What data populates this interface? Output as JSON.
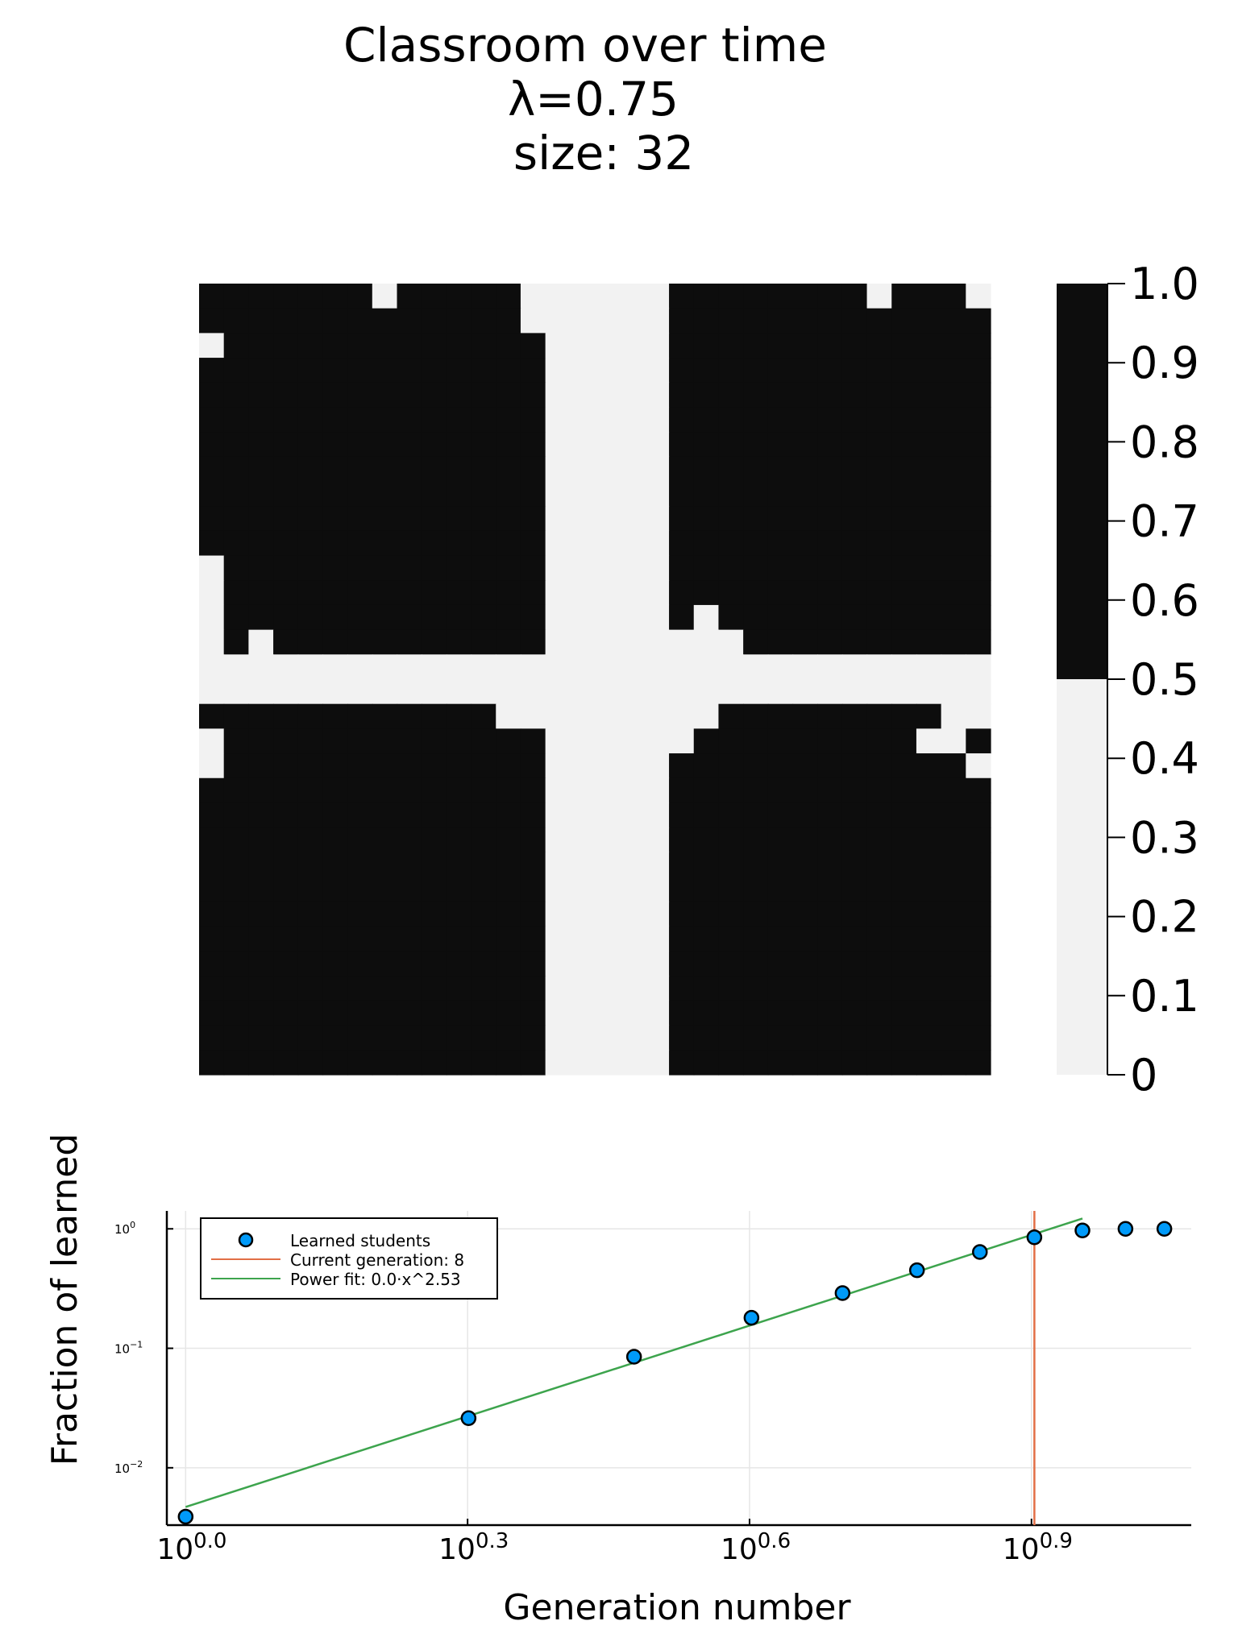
{
  "chart_data": [
    {
      "type": "heatmap",
      "title_lines": [
        "Classroom over time",
        "λ=0.75",
        "size: 32"
      ],
      "grid_size": 32,
      "colors": {
        "high": "#0d0d0d",
        "low": "#f2f2f2"
      },
      "colorbar": {
        "range": [
          0,
          1
        ],
        "ticks": [
          0,
          0.1,
          0.2,
          0.3,
          0.4,
          0.5,
          0.6,
          0.7,
          0.8,
          0.9,
          1.0
        ],
        "tick_labels": [
          "0",
          "0.1",
          "0.2",
          "0.3",
          "0.4",
          "0.5",
          "0.6",
          "0.7",
          "0.8",
          "0.9",
          "1.0"
        ],
        "threshold": 0.5
      },
      "grid_rows": [
        "11111110111110000001111111101110",
        "11111111111110000001111111111111",
        "01111111111111000001111111111111",
        "11111111111111000001111111111111",
        "11111111111111000001111111111111",
        "11111111111111000001111111111111",
        "11111111111111000001111111111111",
        "11111111111111000001111111111111",
        "11111111111111000001111111111111",
        "11111111111111000001111111111111",
        "11111111111111000001111111111111",
        "01111111111111000001111111111111",
        "01111111111111000001111111111111",
        "01111111111111000001011111111111",
        "01011111111111000000001111111111",
        "00000000000000000000000000000000",
        "00000000000000000000000000000000",
        "11111111111100000000011111111100",
        "01111111111111000000111111111001",
        "01111111111111000001111111111110",
        "11111111111111000001111111111111",
        "11111111111111000001111111111111",
        "11111111111111000001111111111111",
        "11111111111111000001111111111111",
        "11111111111111000001111111111111",
        "11111111111111000001111111111111",
        "11111111111111000001111111111111",
        "11111111111111000001111111111111",
        "11111111111111000001111111111111",
        "11111111111111000001111111111111",
        "11111111111111000001111111111111",
        "11111111111111000001111111111111"
      ]
    },
    {
      "type": "scatter",
      "xscale": "log10",
      "yscale": "log10",
      "xlabel": "Generation number",
      "ylabel": "Fraction of learned",
      "xlim_log10": [
        -0.02,
        1.07
      ],
      "ylim_log10": [
        -2.48,
        0.15
      ],
      "xticks": [
        {
          "log": 0.0,
          "base": "10",
          "exp": "0.0"
        },
        {
          "log": 0.3,
          "base": "10",
          "exp": "0.3"
        },
        {
          "log": 0.6,
          "base": "10",
          "exp": "0.6"
        },
        {
          "log": 0.9,
          "base": "10",
          "exp": "0.9"
        }
      ],
      "yticks": [
        {
          "log": 0,
          "base": "10",
          "exp": "0"
        },
        {
          "log": -1,
          "base": "10",
          "exp": "−1"
        },
        {
          "log": -2,
          "base": "10",
          "exp": "−2"
        }
      ],
      "grid": true,
      "series": [
        {
          "name": "Learned students",
          "kind": "scatter",
          "color": "#009af9",
          "x": [
            1,
            2,
            3,
            4,
            5,
            6,
            7,
            8,
            9,
            10,
            11
          ],
          "y": [
            0.0039,
            0.026,
            0.085,
            0.18,
            0.29,
            0.45,
            0.64,
            0.85,
            0.97,
            1.0,
            1.0
          ]
        },
        {
          "name": "Current generation: 8",
          "kind": "vline",
          "color": "#e26f46",
          "x": 8
        },
        {
          "name": "Power fit: 0.0·x^2.53",
          "kind": "line",
          "color": "#3da44d",
          "coef": 0.0047,
          "exponent": 2.53,
          "x_range": [
            1,
            9
          ]
        }
      ],
      "legend": "top-left"
    }
  ]
}
